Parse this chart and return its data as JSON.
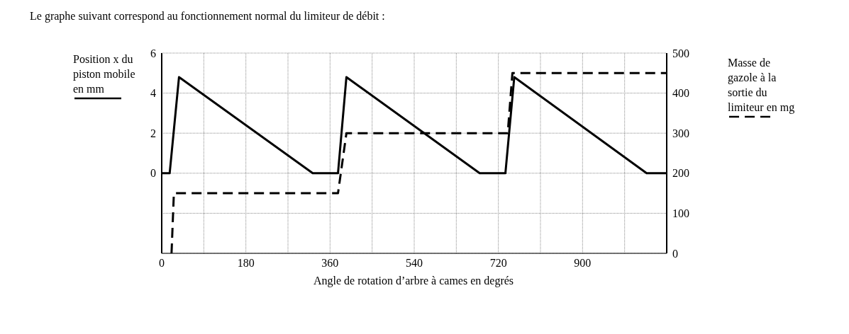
{
  "chart_data": {
    "type": "line",
    "title": "Le graphe suivant correspond au fonctionnement normal du limiteur de débit :",
    "xlabel": "Angle de rotation d’arbre à cames en degrés",
    "ylabel": "Position x du piston mobile en mm",
    "y2label": "Masse de gazole à la sortie du limiteur en mg",
    "series": [
      {
        "color": "#000000",
        "line_style": "solid",
        "x": [
          0,
          17,
          37,
          323,
          377,
          395,
          680,
          735,
          754,
          1037,
          1080
        ],
        "values": [
          0,
          0,
          4.8,
          0,
          0,
          4.8,
          0,
          0,
          4.8,
          0,
          0
        ]
      },
      {
        "color": "#000000",
        "line_style": "dashed",
        "axis": "y2",
        "x": [
          21,
          26,
          377,
          395,
          740,
          750,
          1080
        ],
        "values": [
          0,
          150,
          150,
          300,
          300,
          450,
          450
        ]
      }
    ],
    "xlim": [
      0,
      1080
    ],
    "xticks": [
      0,
      {
        "value": 90,
        "label": null
      },
      180,
      {
        "value": 270,
        "label": null
      },
      360,
      {
        "value": 450,
        "label": null
      },
      540,
      {
        "value": 630,
        "label": null
      },
      720,
      {
        "value": 810,
        "label": null
      },
      900,
      {
        "value": 990,
        "label": null
      },
      {
        "value": 1080,
        "label": null
      }
    ],
    "ylim": [
      -4,
      6
    ],
    "yticks": [
      {
        "value": -4,
        "label": null
      },
      {
        "value": -2,
        "label": null
      },
      0,
      2,
      4,
      6
    ],
    "y2lim": [
      0,
      500
    ],
    "y2ticks": [
      0,
      100,
      200,
      300,
      400,
      500
    ],
    "grid": true,
    "marker": "none"
  }
}
